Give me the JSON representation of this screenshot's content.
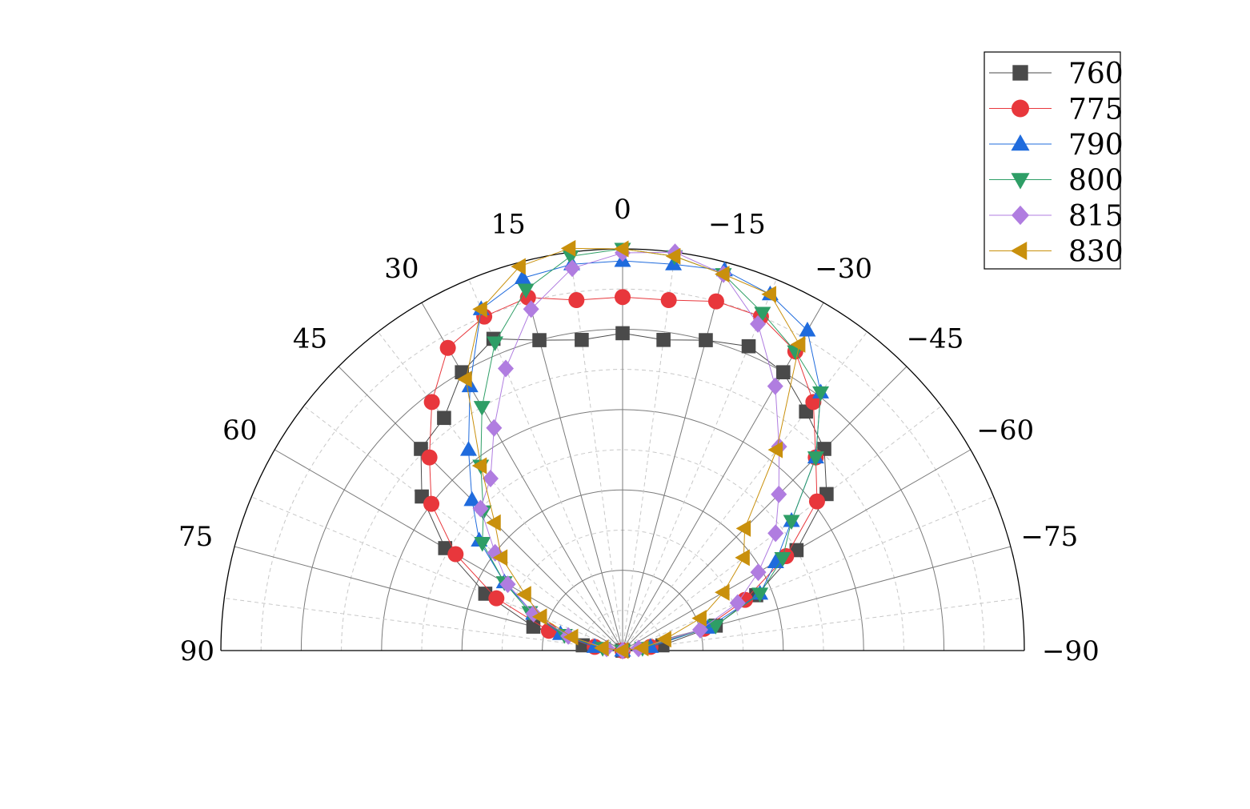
{
  "chart_data": {
    "type": "line",
    "subtype": "polar-half",
    "angle_axis": {
      "range": [
        -90,
        90
      ],
      "tick_labels": [
        "90",
        "75",
        "60",
        "45",
        "30",
        "15",
        "0",
        "-15",
        "-30",
        "-45",
        "-60",
        "-75",
        "-90"
      ],
      "tick_values": [
        90,
        75,
        60,
        45,
        30,
        15,
        0,
        -15,
        -30,
        -45,
        -60,
        -75,
        -90
      ],
      "major_gridlines_every": 15,
      "minor_gridlines_every": 7.5
    },
    "radial_axis": {
      "range": [
        0,
        1
      ],
      "major_rings": [
        0.2,
        0.4,
        0.6,
        0.8,
        1.0
      ],
      "minor_rings": [
        0.1,
        0.3,
        0.5,
        0.7,
        0.9
      ]
    },
    "grid": true,
    "legend": {
      "position": "top-right"
    },
    "series": [
      {
        "name": "760",
        "color": "#4a4a4a",
        "marker": "square",
        "angles": [
          90,
          82.5,
          75,
          67.5,
          60,
          52.5,
          45,
          37.5,
          30,
          22.5,
          15,
          7.5,
          0,
          -7.5,
          -15,
          -22.5,
          -30,
          -37.5,
          -45,
          -52.5,
          -60,
          -67.5,
          -75,
          -82.5,
          -90
        ],
        "r": [
          0.0,
          0.1,
          0.23,
          0.37,
          0.51,
          0.63,
          0.71,
          0.73,
          0.8,
          0.84,
          0.8,
          0.78,
          0.79,
          0.78,
          0.8,
          0.82,
          0.8,
          0.75,
          0.71,
          0.64,
          0.5,
          0.36,
          0.24,
          0.1,
          0.0
        ]
      },
      {
        "name": "775",
        "color": "#e8373c",
        "marker": "circle",
        "angles": [
          90,
          82.5,
          75,
          67.5,
          60,
          52.5,
          45,
          37.5,
          30,
          22.5,
          15,
          7.5,
          0,
          -7.5,
          -15,
          -22.5,
          -30,
          -37.5,
          -45,
          -52.5,
          -60,
          -67.5,
          -75,
          -82.5,
          -90
        ],
        "r": [
          0.0,
          0.07,
          0.19,
          0.34,
          0.48,
          0.6,
          0.68,
          0.78,
          0.87,
          0.9,
          0.91,
          0.88,
          0.88,
          0.88,
          0.9,
          0.9,
          0.86,
          0.78,
          0.68,
          0.61,
          0.47,
          0.33,
          0.21,
          0.07,
          0.0
        ]
      },
      {
        "name": "790",
        "color": "#1f6bdd",
        "marker": "triangle-up",
        "angles": [
          90,
          82.5,
          75,
          67.5,
          60,
          52.5,
          45,
          37.5,
          30,
          22.5,
          15,
          7.5,
          0,
          -7.5,
          -15,
          -22.5,
          -30,
          -37.5,
          -45,
          -52.5,
          -60,
          -67.5,
          -75,
          -82.5,
          -90
        ],
        "r": [
          0.0,
          0.07,
          0.16,
          0.24,
          0.34,
          0.45,
          0.53,
          0.63,
          0.76,
          0.92,
          0.96,
          0.97,
          0.97,
          0.97,
          0.98,
          0.96,
          0.92,
          0.81,
          0.68,
          0.53,
          0.44,
          0.37,
          0.22,
          0.07,
          0.0
        ]
      },
      {
        "name": "800",
        "color": "#2e9e66",
        "marker": "triangle-down",
        "angles": [
          90,
          82.5,
          75,
          67.5,
          60,
          52.5,
          45,
          37.5,
          30,
          22.5,
          15,
          7.5,
          0,
          -7.5,
          -15,
          -22.5,
          -30,
          -37.5,
          -45,
          -52.5,
          -60,
          -67.5,
          -75,
          -82.5,
          -90
        ],
        "r": [
          0.0,
          0.05,
          0.15,
          0.25,
          0.34,
          0.44,
          0.49,
          0.58,
          0.7,
          0.83,
          0.93,
          0.99,
          1.0,
          0.99,
          0.97,
          0.91,
          0.86,
          0.81,
          0.68,
          0.53,
          0.46,
          0.37,
          0.24,
          0.05,
          0.0
        ]
      },
      {
        "name": "815",
        "color": "#b07de0",
        "marker": "diamond",
        "angles": [
          90,
          82.5,
          75,
          67.5,
          60,
          52.5,
          45,
          37.5,
          30,
          22.5,
          15,
          7.5,
          0,
          -7.5,
          -15,
          -22.5,
          -30,
          -37.5,
          -45,
          -52.5,
          -60,
          -67.5,
          -75,
          -82.5,
          -90
        ],
        "r": [
          0.0,
          0.04,
          0.14,
          0.24,
          0.33,
          0.4,
          0.5,
          0.54,
          0.64,
          0.76,
          0.88,
          0.96,
          0.99,
          1.0,
          0.97,
          0.88,
          0.76,
          0.64,
          0.55,
          0.48,
          0.39,
          0.31,
          0.2,
          0.04,
          0.0
        ]
      },
      {
        "name": "830",
        "color": "#c9900c",
        "marker": "triangle-left",
        "angles": [
          90,
          82.5,
          75,
          67.5,
          60,
          52.5,
          45,
          37.5,
          30,
          22.5,
          15,
          7.5,
          0,
          -7.5,
          -15,
          -22.5,
          -30,
          -37.5,
          -45,
          -52.5,
          -60,
          -67.5,
          -75,
          -82.5,
          -90
        ],
        "r": [
          0.0,
          0.05,
          0.13,
          0.22,
          0.28,
          0.38,
          0.45,
          0.58,
          0.78,
          0.92,
          0.99,
          1.01,
          1.0,
          0.99,
          0.97,
          0.96,
          0.88,
          0.63,
          0.43,
          0.38,
          0.29,
          0.21,
          0.11,
          0.05,
          0.0
        ]
      }
    ]
  }
}
